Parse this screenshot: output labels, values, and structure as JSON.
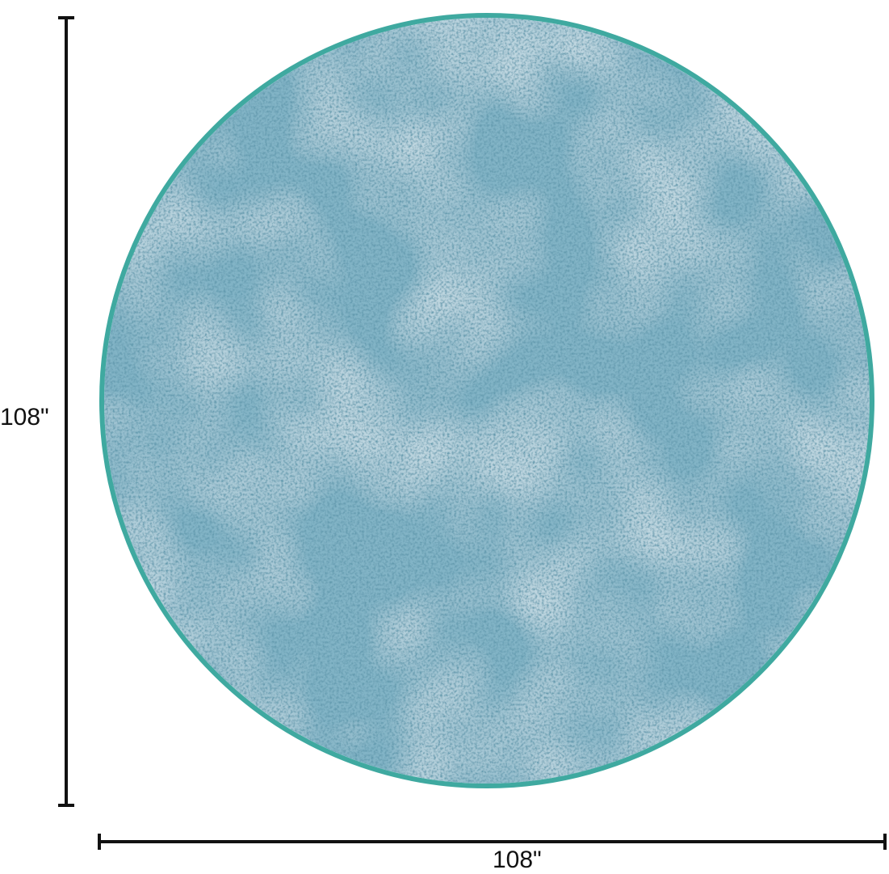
{
  "product": {
    "shape": "round",
    "rug_color": "#82b4c6",
    "border_color": "#3fa9a0"
  },
  "dimensions": {
    "height_label": "108\"",
    "width_label": "108\""
  }
}
